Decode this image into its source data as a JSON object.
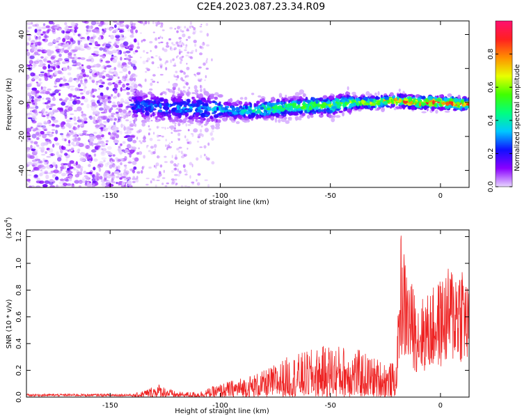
{
  "title": "C2E4.2023.087.23.34.R09",
  "chart_data": [
    {
      "type": "heatmap",
      "xlabel": "Height of straight line (km)",
      "ylabel": "Frequency (Hz)",
      "xlim": [
        -188,
        13
      ],
      "ylim": [
        -50,
        48
      ],
      "xticks": [
        -150,
        -100,
        -50,
        0
      ],
      "yticks": [
        -40,
        -20,
        0,
        20,
        40
      ],
      "colorbar": {
        "label": "Normalized spectral amplitude",
        "range": [
          0.0,
          1.0
        ],
        "ticks": [
          "0.0",
          "0.2",
          "0.4",
          "0.6",
          "0.8"
        ],
        "colormap": [
          "#e8d6ff",
          "#8a00ff",
          "#1010ff",
          "#00c8ff",
          "#00ff80",
          "#40ff00",
          "#e8ff00",
          "#ff9000",
          "#ff2020",
          "#ff1070"
        ]
      },
      "ridge": [
        {
          "x": -140,
          "f": -2,
          "amp": 0.28
        },
        {
          "x": -120,
          "f": -3,
          "amp": 0.3
        },
        {
          "x": -100,
          "f": -4,
          "amp": 0.35
        },
        {
          "x": -90,
          "f": -5,
          "amp": 0.4
        },
        {
          "x": -80,
          "f": -4,
          "amp": 0.5
        },
        {
          "x": -70,
          "f": -3,
          "amp": 0.55
        },
        {
          "x": -60,
          "f": -2,
          "amp": 0.58
        },
        {
          "x": -50,
          "f": -2,
          "amp": 0.6
        },
        {
          "x": -40,
          "f": 0,
          "amp": 0.6
        },
        {
          "x": -30,
          "f": 0,
          "amp": 0.7
        },
        {
          "x": -20,
          "f": 1,
          "amp": 0.8
        },
        {
          "x": -10,
          "f": 0,
          "amp": 0.92
        },
        {
          "x": 0,
          "f": 0,
          "amp": 0.95
        },
        {
          "x": 10,
          "f": -1,
          "amp": 0.9
        }
      ]
    },
    {
      "type": "line",
      "xlabel": "Height of straight line (km)",
      "ylabel": "SNR (10 * v/v)",
      "yscale_label": "(x10",
      "yscale_exp": "4",
      "yscale_close": ")",
      "xlim": [
        -188,
        13
      ],
      "ylim": [
        0,
        1.25
      ],
      "xticks": [
        -150,
        -100,
        -50,
        0
      ],
      "yticks": [
        "0.0",
        "0.2",
        "0.4",
        "0.6",
        "0.8",
        "1.0",
        "1.2"
      ],
      "color": "#ee2222",
      "envelope": [
        {
          "x": -188,
          "y": 0.02
        },
        {
          "x": -140,
          "y": 0.02
        },
        {
          "x": -135,
          "y": 0.05
        },
        {
          "x": -128,
          "y": 0.1
        },
        {
          "x": -120,
          "y": 0.04
        },
        {
          "x": -110,
          "y": 0.04
        },
        {
          "x": -100,
          "y": 0.1
        },
        {
          "x": -90,
          "y": 0.15
        },
        {
          "x": -80,
          "y": 0.2
        },
        {
          "x": -70,
          "y": 0.3
        },
        {
          "x": -60,
          "y": 0.35
        },
        {
          "x": -50,
          "y": 0.4
        },
        {
          "x": -40,
          "y": 0.38
        },
        {
          "x": -30,
          "y": 0.3
        },
        {
          "x": -20,
          "y": 0.25
        },
        {
          "x": -18,
          "y": 1.2
        },
        {
          "x": -15,
          "y": 0.9
        },
        {
          "x": -10,
          "y": 0.7
        },
        {
          "x": -5,
          "y": 0.75
        },
        {
          "x": 0,
          "y": 0.85
        },
        {
          "x": 5,
          "y": 0.95
        },
        {
          "x": 10,
          "y": 1.0
        },
        {
          "x": 13,
          "y": 0.75
        }
      ]
    }
  ]
}
